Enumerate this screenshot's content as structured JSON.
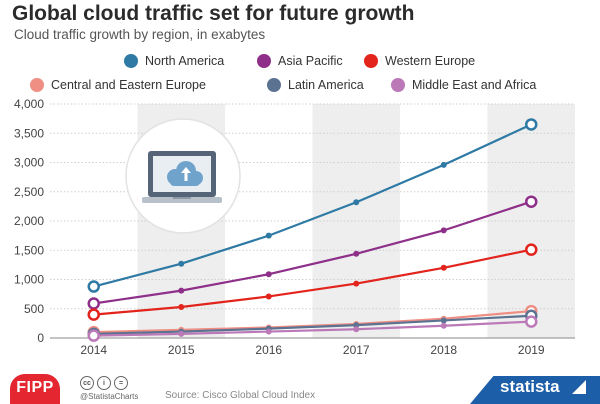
{
  "chart_data": {
    "type": "line",
    "title": "Global cloud traffic set for future growth",
    "subtitle": "Cloud traffic growth by region, in exabytes",
    "x": [
      "2014",
      "2015",
      "2016",
      "2017",
      "2018",
      "2019"
    ],
    "ylim": [
      0,
      4000
    ],
    "yticks": [
      0,
      500,
      1000,
      1500,
      2000,
      2500,
      3000,
      3500,
      4000
    ],
    "ytick_labels": [
      "0",
      "500",
      "1,000",
      "1,500",
      "2,000",
      "2,500",
      "3,000",
      "3,500",
      "4,000"
    ],
    "grid": true,
    "legend_position": "top",
    "series": [
      {
        "name": "North America",
        "color": "#2e7aa5",
        "values": [
          880,
          1270,
          1750,
          2320,
          2960,
          3650
        ]
      },
      {
        "name": "Asia Pacific",
        "color": "#8e2f8a",
        "values": [
          590,
          810,
          1090,
          1440,
          1840,
          2330
        ]
      },
      {
        "name": "Western Europe",
        "color": "#e2241c",
        "values": [
          400,
          530,
          710,
          930,
          1200,
          1510
        ]
      },
      {
        "name": "Central and Eastern Europe",
        "color": "#ef8f84",
        "values": [
          100,
          140,
          180,
          240,
          330,
          460
        ]
      },
      {
        "name": "Latin America",
        "color": "#5c7291",
        "values": [
          70,
          110,
          160,
          220,
          300,
          380
        ]
      },
      {
        "name": "Middle East and Africa",
        "color": "#bb79b8",
        "values": [
          40,
          70,
          110,
          150,
          210,
          280
        ]
      }
    ]
  },
  "footer": {
    "logo": "FIPP",
    "cc_icons": [
      "cc",
      "i",
      "="
    ],
    "handle": "@StatistaCharts",
    "source": "Source: Cisco Global Cloud Index",
    "brand": "statista"
  }
}
